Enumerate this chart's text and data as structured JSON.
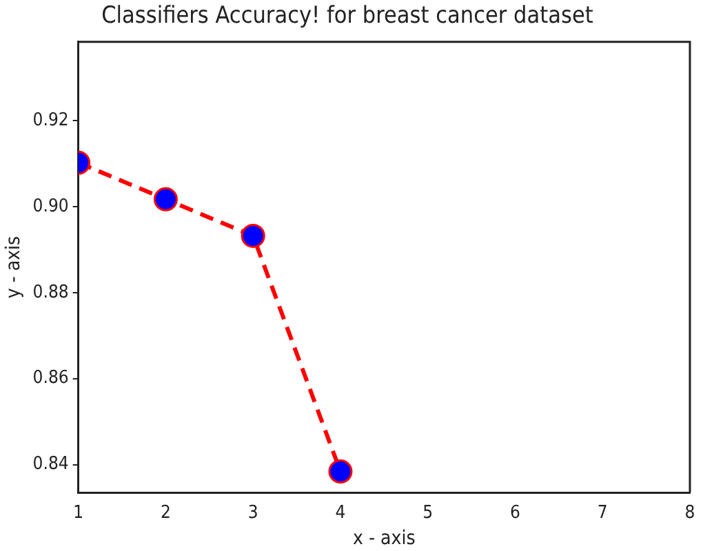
{
  "chart_data": {
    "type": "line",
    "title": "Classifiers Accuracy! for breast cancer dataset",
    "xlabel": "x - axis",
    "ylabel": "y - axis",
    "x": [
      1,
      2,
      3,
      4
    ],
    "series": [
      {
        "color": "#ff0000",
        "values": [
          0.9102,
          0.9017,
          0.8932,
          0.8384
        ]
      }
    ],
    "xlim": [
      1,
      8
    ],
    "xticks": [
      1,
      2,
      3,
      4,
      5,
      6,
      7,
      8
    ],
    "ylim": [
      0.8335,
      0.9383
    ],
    "yticks": [
      {
        "value": 0.84,
        "label": "0.84"
      },
      {
        "value": 0.86,
        "label": "0.86"
      },
      {
        "value": 0.88,
        "label": "0.88"
      },
      {
        "value": 0.9,
        "label": "0.90"
      },
      {
        "value": 0.92,
        "label": "0.92"
      }
    ],
    "grid": false,
    "legend": false,
    "marker": "circle",
    "line_style": "dashed"
  }
}
